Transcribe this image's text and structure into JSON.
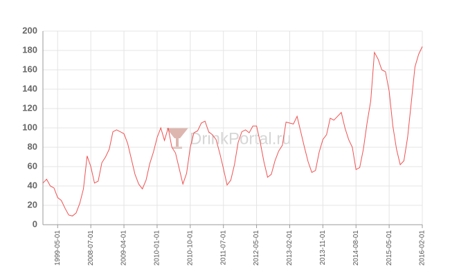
{
  "chart_data": {
    "type": "line",
    "watermark": "DrinkPortal.ru",
    "categories": [
      null,
      null,
      null,
      null,
      "1999-05-01",
      null,
      null,
      null,
      null,
      null,
      null,
      null,
      null,
      "2008-07-01",
      null,
      null,
      null,
      null,
      null,
      null,
      null,
      null,
      "2009-04-01",
      null,
      null,
      null,
      null,
      null,
      null,
      null,
      null,
      "2010-01-01",
      null,
      null,
      null,
      null,
      null,
      null,
      null,
      null,
      "2010-10-01",
      null,
      null,
      null,
      null,
      null,
      null,
      null,
      null,
      "2011-07-01",
      null,
      null,
      null,
      null,
      null,
      null,
      null,
      null,
      "2012-05-01",
      null,
      null,
      null,
      null,
      null,
      null,
      null,
      null,
      "2013-02-01",
      null,
      null,
      null,
      null,
      null,
      null,
      null,
      null,
      "2013-11-01",
      null,
      null,
      null,
      null,
      null,
      null,
      null,
      null,
      "2014-08-01",
      null,
      null,
      null,
      null,
      null,
      null,
      null,
      null,
      "2015-05-01",
      null,
      null,
      null,
      null,
      null,
      null,
      null,
      null,
      "2016-02-01"
    ],
    "values": [
      43,
      47,
      40,
      38,
      28,
      25,
      17,
      10,
      9,
      12,
      22,
      37,
      71,
      60,
      43,
      45,
      64,
      70,
      78,
      96,
      98,
      96,
      94,
      84,
      68,
      52,
      42,
      37,
      46,
      63,
      75,
      90,
      100,
      87,
      100,
      80,
      74,
      58,
      42,
      53,
      80,
      95,
      97,
      105,
      107,
      96,
      93,
      88,
      74,
      58,
      41,
      46,
      62,
      85,
      96,
      98,
      95,
      102,
      102,
      85,
      65,
      49,
      52,
      66,
      76,
      82,
      106,
      105,
      104,
      112,
      96,
      80,
      65,
      54,
      56,
      75,
      88,
      93,
      110,
      108,
      112,
      116,
      100,
      88,
      80,
      57,
      59,
      78,
      105,
      128,
      178,
      171,
      160,
      158,
      138,
      102,
      78,
      62,
      66,
      90,
      126,
      163,
      176,
      184
    ],
    "color": "#f05050",
    "ylim": [
      0,
      200
    ],
    "yticks": [
      0,
      20,
      40,
      60,
      80,
      100,
      120,
      140,
      160,
      180,
      200
    ],
    "grid": true
  }
}
